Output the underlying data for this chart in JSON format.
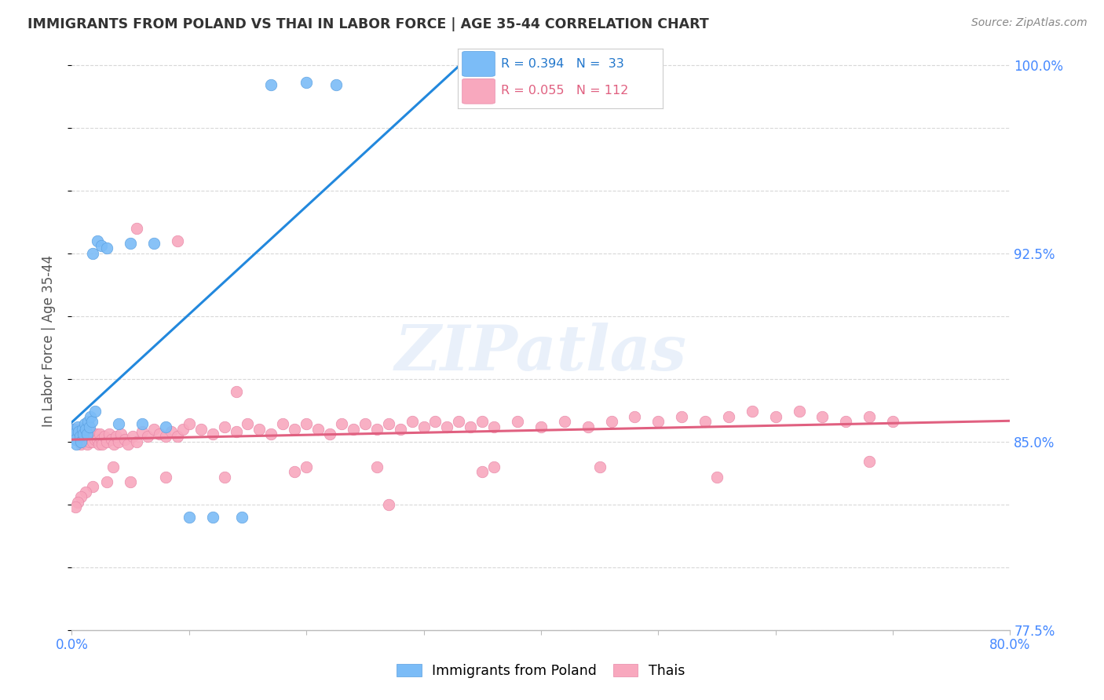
{
  "title": "IMMIGRANTS FROM POLAND VS THAI IN LABOR FORCE | AGE 35-44 CORRELATION CHART",
  "source": "Source: ZipAtlas.com",
  "ylabel": "In Labor Force | Age 35-44",
  "x_min": 0.0,
  "x_max": 0.8,
  "y_min": 0.775,
  "y_max": 1.005,
  "poland_color": "#7bbcf7",
  "poland_edge": "#5a9fe0",
  "thai_color": "#f8a8be",
  "thai_edge": "#e888a8",
  "trend_poland_color": "#2288dd",
  "trend_thai_color": "#e06080",
  "poland_R": 0.394,
  "poland_N": 33,
  "thai_R": 0.055,
  "thai_N": 112,
  "legend_label_poland": "Immigrants from Poland",
  "legend_label_thai": "Thais",
  "watermark": "ZIPatlas",
  "poland_x": [
    0.001,
    0.002,
    0.003,
    0.004,
    0.005,
    0.006,
    0.007,
    0.008,
    0.009,
    0.01,
    0.011,
    0.012,
    0.013,
    0.014,
    0.015,
    0.016,
    0.017,
    0.018,
    0.02,
    0.022,
    0.025,
    0.03,
    0.04,
    0.05,
    0.06,
    0.07,
    0.08,
    0.1,
    0.12,
    0.145,
    0.17,
    0.2,
    0.225
  ],
  "poland_y": [
    0.855,
    0.853,
    0.851,
    0.849,
    0.856,
    0.854,
    0.852,
    0.85,
    0.855,
    0.853,
    0.857,
    0.855,
    0.853,
    0.858,
    0.856,
    0.86,
    0.858,
    0.925,
    0.862,
    0.93,
    0.928,
    0.927,
    0.857,
    0.929,
    0.857,
    0.929,
    0.856,
    0.82,
    0.82,
    0.82,
    0.992,
    0.993,
    0.992
  ],
  "thai_x": [
    0.001,
    0.002,
    0.003,
    0.004,
    0.005,
    0.006,
    0.007,
    0.008,
    0.009,
    0.01,
    0.011,
    0.012,
    0.013,
    0.014,
    0.015,
    0.016,
    0.017,
    0.018,
    0.019,
    0.02,
    0.021,
    0.022,
    0.023,
    0.024,
    0.025,
    0.026,
    0.028,
    0.03,
    0.032,
    0.034,
    0.036,
    0.038,
    0.04,
    0.042,
    0.045,
    0.048,
    0.052,
    0.055,
    0.06,
    0.065,
    0.07,
    0.075,
    0.08,
    0.085,
    0.09,
    0.095,
    0.1,
    0.11,
    0.12,
    0.13,
    0.14,
    0.15,
    0.16,
    0.17,
    0.18,
    0.19,
    0.2,
    0.21,
    0.22,
    0.23,
    0.24,
    0.25,
    0.26,
    0.27,
    0.28,
    0.29,
    0.3,
    0.31,
    0.32,
    0.33,
    0.34,
    0.35,
    0.36,
    0.38,
    0.4,
    0.42,
    0.44,
    0.46,
    0.48,
    0.5,
    0.52,
    0.54,
    0.56,
    0.58,
    0.6,
    0.62,
    0.64,
    0.66,
    0.68,
    0.7,
    0.36,
    0.26,
    0.19,
    0.13,
    0.08,
    0.05,
    0.03,
    0.018,
    0.012,
    0.008,
    0.005,
    0.003,
    0.035,
    0.055,
    0.09,
    0.14,
    0.2,
    0.27,
    0.35,
    0.45,
    0.55,
    0.68
  ],
  "thai_y": [
    0.853,
    0.855,
    0.851,
    0.853,
    0.855,
    0.853,
    0.851,
    0.849,
    0.852,
    0.85,
    0.853,
    0.851,
    0.849,
    0.852,
    0.85,
    0.854,
    0.852,
    0.85,
    0.853,
    0.851,
    0.853,
    0.851,
    0.849,
    0.853,
    0.851,
    0.849,
    0.852,
    0.85,
    0.853,
    0.851,
    0.849,
    0.852,
    0.85,
    0.853,
    0.851,
    0.849,
    0.852,
    0.85,
    0.854,
    0.852,
    0.855,
    0.853,
    0.852,
    0.854,
    0.852,
    0.855,
    0.857,
    0.855,
    0.853,
    0.856,
    0.854,
    0.857,
    0.855,
    0.853,
    0.857,
    0.855,
    0.857,
    0.855,
    0.853,
    0.857,
    0.855,
    0.857,
    0.855,
    0.857,
    0.855,
    0.858,
    0.856,
    0.858,
    0.856,
    0.858,
    0.856,
    0.858,
    0.856,
    0.858,
    0.856,
    0.858,
    0.856,
    0.858,
    0.86,
    0.858,
    0.86,
    0.858,
    0.86,
    0.862,
    0.86,
    0.862,
    0.86,
    0.858,
    0.86,
    0.858,
    0.84,
    0.84,
    0.838,
    0.836,
    0.836,
    0.834,
    0.834,
    0.832,
    0.83,
    0.828,
    0.826,
    0.824,
    0.84,
    0.935,
    0.93,
    0.87,
    0.84,
    0.825,
    0.838,
    0.84,
    0.836,
    0.842
  ],
  "grid_color": "#d8d8d8",
  "tick_color": "#4488ff",
  "title_color": "#333333",
  "source_color": "#888888",
  "ylabel_color": "#555555"
}
